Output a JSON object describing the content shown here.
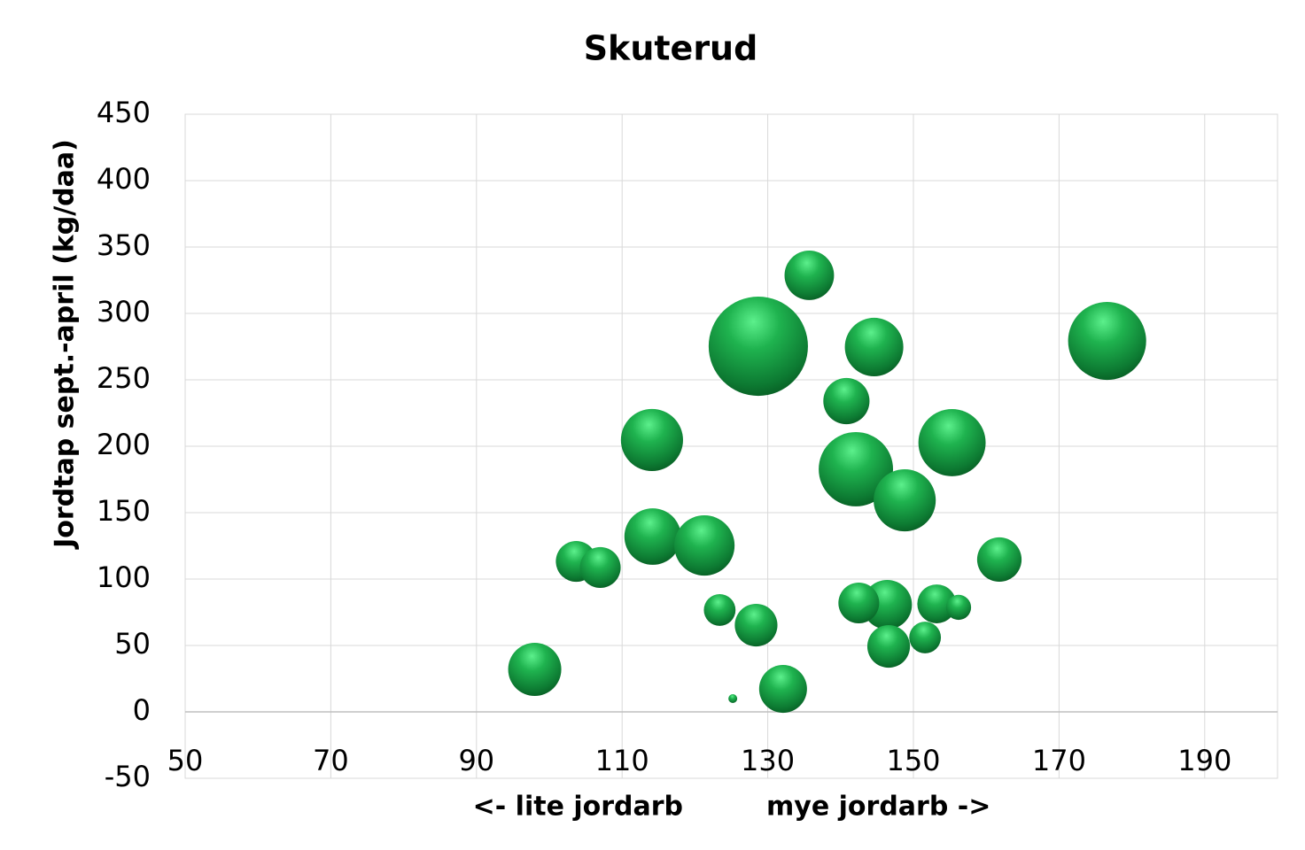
{
  "chart_data": {
    "type": "bubble",
    "title": "Skuterud",
    "ylabel": "Jordtap sept.-april (kg/daa)",
    "xlabel": "<- lite jordarb         mye jordarb ->",
    "color": "#1aa34a",
    "grid": true,
    "xlim": [
      50,
      200
    ],
    "xticks": [
      50,
      70,
      90,
      110,
      130,
      150,
      170,
      190
    ],
    "ylim": [
      -50,
      450
    ],
    "yticks": [
      -50,
      0,
      50,
      100,
      150,
      200,
      250,
      300,
      350,
      400,
      450
    ],
    "x": [
      135.7,
      128.7,
      144.6,
      176.6,
      140.8,
      114.1,
      155.3,
      142.1,
      148.8,
      114.2,
      121.3,
      161.8,
      103.7,
      107,
      146.4,
      142.5,
      153.2,
      156.2,
      123.4,
      128.4,
      146.6,
      151.6,
      98,
      132.1,
      125.2
    ],
    "values": [
      328.7,
      275.3,
      274.7,
      279.3,
      234,
      204.7,
      202.7,
      182.7,
      159.3,
      132,
      125.3,
      114.7,
      113.3,
      108.7,
      80.7,
      82,
      81.3,
      78.7,
      76.7,
      65.3,
      49.3,
      56,
      32,
      17.3,
      10
    ],
    "sizes": [
      78,
      314,
      109,
      194,
      68,
      123,
      144,
      176,
      123,
      102,
      116,
      63,
      53,
      53,
      78,
      53,
      48,
      20,
      32,
      58,
      58,
      32,
      90,
      73,
      2.5
    ]
  }
}
